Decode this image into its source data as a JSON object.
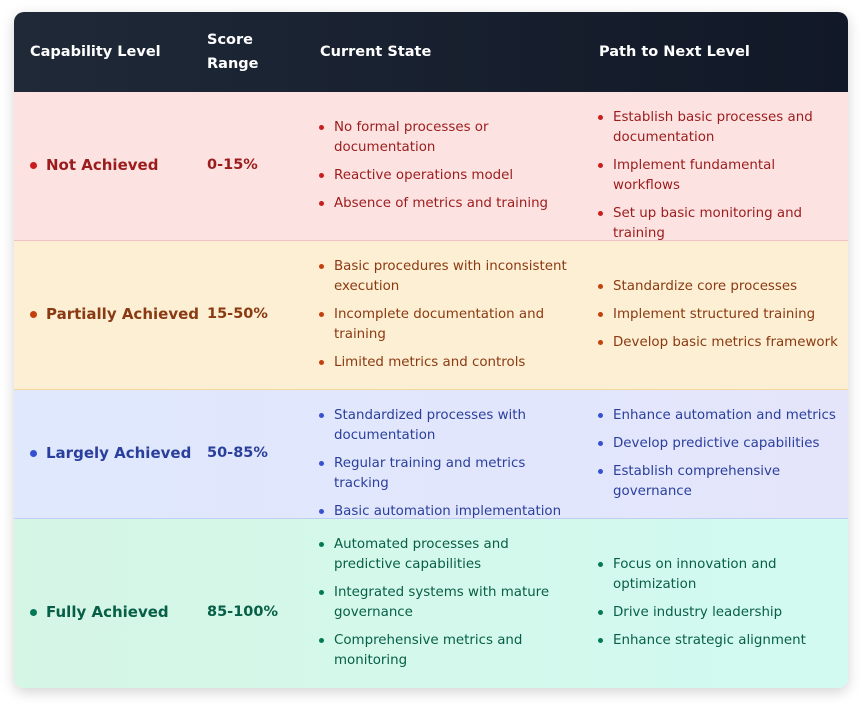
{
  "table": {
    "headers": {
      "capability": "Capability Level",
      "score_line1": "Score",
      "score_line2": "Range",
      "current": "Current State",
      "path": "Path to Next Level"
    },
    "rows": [
      {
        "level": "Not Achieved",
        "score": "0-15%",
        "color": "#9b1c1c",
        "dot_color": "#c81e1e",
        "current": [
          "No formal processes or documentation",
          "Reactive operations model",
          "Absence of metrics and training"
        ],
        "path": [
          "Establish basic processes and documentation",
          "Implement fundamental workflows",
          "Set up basic monitoring and training"
        ]
      },
      {
        "level": "Partially Achieved",
        "score": "15-50%",
        "color": "#8a3a12",
        "dot_color": "#c2410c",
        "current": [
          "Basic procedures with inconsistent execution",
          "Incomplete documentation and training",
          "Limited metrics and controls"
        ],
        "path": [
          "Standardize core processes",
          "Implement structured training",
          "Develop basic metrics framework"
        ]
      },
      {
        "level": "Largely Achieved",
        "score": "50-85%",
        "color": "#2a3f9c",
        "dot_color": "#3451d1",
        "current": [
          "Standardized processes with documentation",
          "Regular training and metrics tracking",
          "Basic automation implementation"
        ],
        "path": [
          "Enhance automation and metrics",
          "Develop predictive capabilities",
          "Establish comprehensive governance"
        ]
      },
      {
        "level": "Fully Achieved",
        "score": "85-100%",
        "color": "#065f46",
        "dot_color": "#047857",
        "current": [
          "Automated processes and predictive capabilities",
          "Integrated systems with mature governance",
          "Comprehensive metrics and monitoring"
        ],
        "path": [
          "Focus on innovation and optimization",
          "Drive industry leadership",
          "Enhance strategic alignment"
        ]
      }
    ]
  }
}
